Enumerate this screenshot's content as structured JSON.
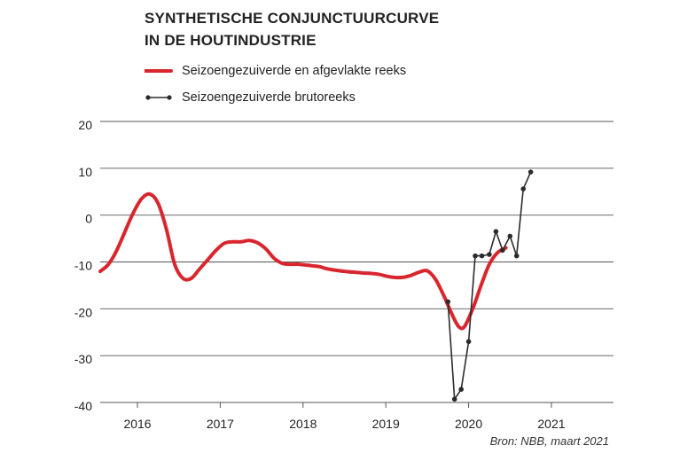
{
  "chart_data": {
    "type": "line",
    "title_lines": [
      "SYNTHETISCHE CONJUNCTUURCURVE",
      "IN DE HOUTINDUSTRIE"
    ],
    "source": "Bron: NBB, maart 2021",
    "ylim": [
      -40,
      20
    ],
    "yticks": [
      20,
      10,
      0,
      -10,
      -20,
      -30,
      -40
    ],
    "xlim": [
      2015.55,
      2021.75
    ],
    "xticks": [
      2016,
      2017,
      2018,
      2019,
      2020,
      2021
    ],
    "grid": true,
    "legend_position": "top-left",
    "colors": {
      "smoothed": "#d9262e",
      "raw": "#2b2b2b",
      "grid": "#555555"
    },
    "series": [
      {
        "name": "Seizoengezuiverde en afgevlakte reeks",
        "style": "line",
        "x": [
          2015.55,
          2015.65,
          2015.75,
          2015.85,
          2015.95,
          2016.05,
          2016.15,
          2016.25,
          2016.35,
          2016.45,
          2016.55,
          2016.65,
          2016.75,
          2016.85,
          2016.95,
          2017.05,
          2017.15,
          2017.25,
          2017.35,
          2017.45,
          2017.55,
          2017.65,
          2017.75,
          2017.85,
          2017.95,
          2018.1,
          2018.2,
          2018.3,
          2018.5,
          2018.7,
          2018.9,
          2019.0,
          2019.1,
          2019.2,
          2019.3,
          2019.4,
          2019.5,
          2019.6,
          2019.7,
          2019.8,
          2019.88,
          2019.95,
          2020.05,
          2020.15,
          2020.25,
          2020.35,
          2020.45
        ],
        "values": [
          -12,
          -10.5,
          -7.5,
          -3.5,
          0.5,
          3.5,
          4.5,
          2.5,
          -3,
          -10.5,
          -13.5,
          -13.5,
          -11.5,
          -9.5,
          -7.5,
          -6,
          -5.7,
          -5.7,
          -5.4,
          -5.9,
          -7.2,
          -9.2,
          -10.3,
          -10.5,
          -10.5,
          -10.8,
          -11,
          -11.5,
          -12,
          -12.3,
          -12.6,
          -13,
          -13.3,
          -13.3,
          -12.9,
          -12.2,
          -11.9,
          -13.7,
          -17.2,
          -21.2,
          -23.8,
          -23.8,
          -20,
          -15,
          -10.5,
          -8,
          -7
        ]
      },
      {
        "name": "Seizoengezuiverde brutoreeks",
        "style": "line-markers",
        "x": [
          2019.75,
          2019.83,
          2019.91,
          2020.0,
          2020.08,
          2020.16,
          2020.25,
          2020.33,
          2020.41,
          2020.5,
          2020.58,
          2020.66,
          2020.75
        ],
        "values": [
          -18.5,
          -39.3,
          -37.2,
          -27,
          -8.7,
          -8.7,
          -8.4,
          -3.5,
          -7.5,
          -4.5,
          -8.7,
          5.6,
          9.2
        ]
      }
    ]
  }
}
